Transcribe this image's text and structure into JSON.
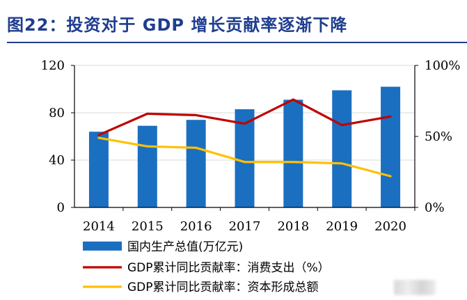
{
  "header": {
    "title": "图22：投资对于 GDP 增长贡献率逐渐下降"
  },
  "chart_data": {
    "type": "bar+line",
    "categories": [
      "2014",
      "2015",
      "2016",
      "2017",
      "2018",
      "2019",
      "2020"
    ],
    "left_axis": {
      "ticks": [
        "0",
        "40",
        "80",
        "120"
      ],
      "ylim": [
        0,
        120
      ]
    },
    "right_axis": {
      "ticks": [
        "0%",
        "50%",
        "100%"
      ],
      "ylim": [
        0,
        100
      ]
    },
    "series": [
      {
        "name": "国内生产总值(万亿元)",
        "type": "bar",
        "axis": "left",
        "color": "#1b6fc0",
        "values": [
          64,
          69,
          74,
          83,
          91,
          99,
          102
        ]
      },
      {
        "name": "GDP累计同比贡献率：消费支出（%）",
        "type": "line",
        "axis": "right",
        "color": "#c00000",
        "values": [
          51,
          66,
          65,
          59,
          76,
          58,
          64
        ]
      },
      {
        "name": "GDP累计同比贡献率：资本形成总额",
        "type": "line",
        "axis": "right",
        "color": "#ffc000",
        "values": [
          49,
          43,
          42,
          32,
          32,
          31,
          22
        ]
      }
    ],
    "grid": true,
    "legend_position": "bottom"
  }
}
